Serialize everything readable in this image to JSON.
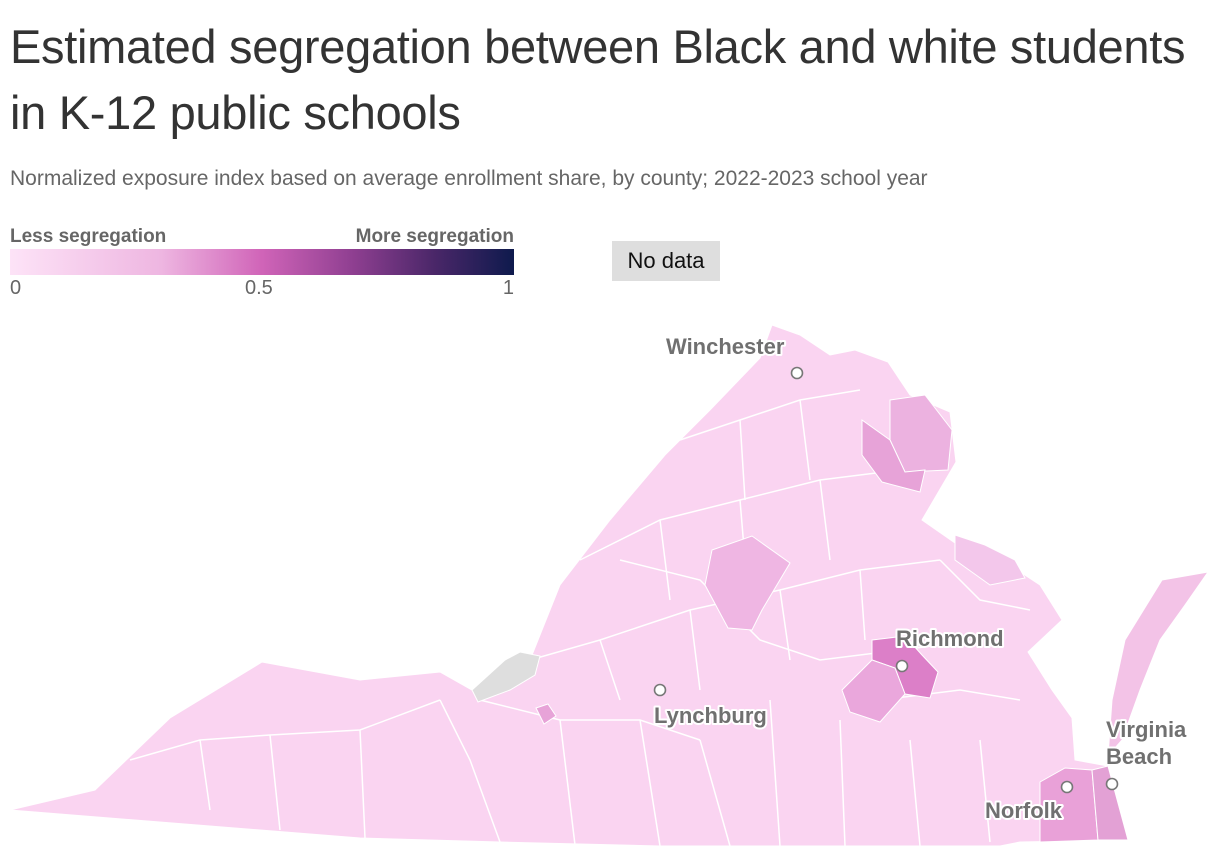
{
  "header": {
    "title": "Estimated segregation between Black and white students in K-12 public schools",
    "subtitle": "Normalized exposure index based on average enrollment share, by county; 2022-2023 school year"
  },
  "legend": {
    "low_label": "Less segregation",
    "high_label": "More segregation",
    "ticks": [
      "0",
      "0.5",
      "1"
    ],
    "nodata_label": "No data",
    "colors": {
      "scale": [
        "#fde3f7",
        "#eeb6e1",
        "#d064b8",
        "#8f3f91",
        "#4b2769",
        "#0e1a4d"
      ],
      "nodata": "#dedede"
    }
  },
  "map": {
    "region": "Virginia",
    "fill_base": "#fad4f1",
    "cities": [
      {
        "name": "Winchester",
        "lines": [
          "Winchester"
        ]
      },
      {
        "name": "Richmond",
        "lines": [
          "Richmond"
        ]
      },
      {
        "name": "Lynchburg",
        "lines": [
          "Lynchburg"
        ]
      },
      {
        "name": "Virginia Beach",
        "lines": [
          "Virginia",
          "Beach"
        ]
      },
      {
        "name": "Norfolk",
        "lines": [
          "Norfolk"
        ]
      }
    ]
  }
}
